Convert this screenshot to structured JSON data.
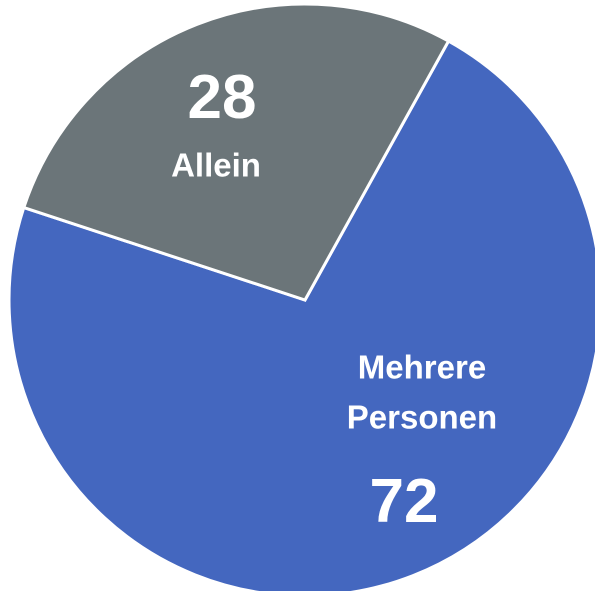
{
  "chart_data": {
    "type": "pie",
    "categories": [
      "Mehrere Personen",
      "Allein"
    ],
    "values": [
      72,
      28
    ],
    "colors": [
      "#4467bf",
      "#6b7579"
    ]
  }
}
